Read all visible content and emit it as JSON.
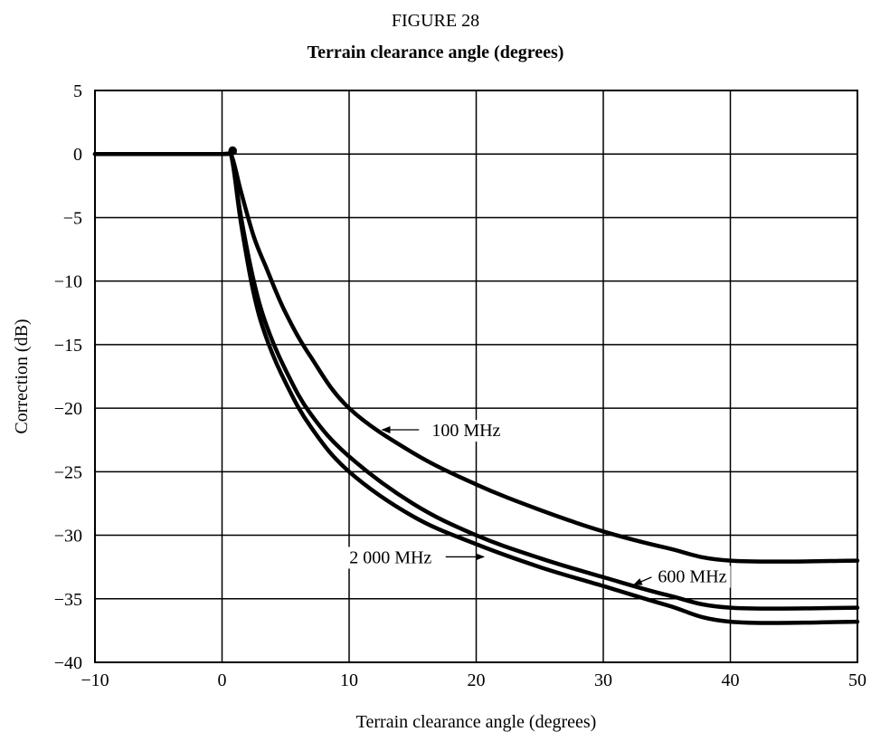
{
  "figure_label": "FIGURE 28",
  "chart_data": {
    "type": "line",
    "title": "Terrain clearance angle (degrees)",
    "xlabel": "Terrain clearance angle (degrees)",
    "ylabel": "Correction (dB)",
    "xlim": [
      -10,
      50
    ],
    "ylim": [
      -40,
      5
    ],
    "xticks": [
      -10,
      0,
      10,
      20,
      30,
      40,
      50
    ],
    "yticks": [
      5,
      0,
      -5,
      -10,
      -15,
      -20,
      -25,
      -30,
      -35,
      -40
    ],
    "xtick_labels": [
      "−10",
      "0",
      "10",
      "20",
      "30",
      "40",
      "50"
    ],
    "ytick_labels": [
      "5",
      "0",
      "−5",
      "−10",
      "−15",
      "−20",
      "−25",
      "−30",
      "−35",
      "−40"
    ],
    "grid": true,
    "series": [
      {
        "name": "100 MHz",
        "x": [
          -10,
          0,
          0.7,
          1.5,
          2.5,
          3.5,
          5,
          7,
          10,
          15,
          20,
          25,
          30,
          35,
          40,
          50
        ],
        "y": [
          0,
          0,
          0,
          -3,
          -6.5,
          -9,
          -12.5,
          -16,
          -20,
          -23.5,
          -26,
          -28,
          -29.7,
          -31,
          -32,
          -32
        ]
      },
      {
        "name": "600 MHz",
        "x": [
          -10,
          0,
          0.7,
          1.5,
          2.5,
          3.5,
          5,
          7,
          10,
          15,
          20,
          25,
          30,
          35,
          40,
          50
        ],
        "y": [
          0,
          0,
          0,
          -5,
          -10,
          -13.5,
          -17,
          -20.5,
          -23.8,
          -27.5,
          -30,
          -31.8,
          -33.3,
          -34.7,
          -35.7,
          -35.7
        ]
      },
      {
        "name": "2 000 MHz",
        "x": [
          -10,
          0,
          0.7,
          1.5,
          2.5,
          3.5,
          5,
          7,
          10,
          15,
          20,
          25,
          30,
          35,
          40,
          50
        ],
        "y": [
          0,
          0,
          0,
          -5.5,
          -11,
          -14.5,
          -18,
          -21.5,
          -25,
          -28.5,
          -30.7,
          -32.5,
          -34,
          -35.5,
          -36.8,
          -36.8
        ]
      }
    ],
    "annotations": [
      {
        "text": "100 MHz",
        "x": 16.5,
        "y": -21.7,
        "arrow_from": [
          15.5,
          -21.7
        ],
        "arrow_to": [
          12.6,
          -21.7
        ],
        "label_anchor": "start"
      },
      {
        "text": "600 MHz",
        "x": 34.3,
        "y": -33.2,
        "arrow_from": [
          33.8,
          -33.3
        ],
        "arrow_to": [
          32.4,
          -33.9
        ],
        "label_anchor": "start"
      },
      {
        "text": "2 000 MHz",
        "x": 16.5,
        "y": -31.7,
        "arrow_from": [
          17.6,
          -31.7
        ],
        "arrow_to": [
          20.6,
          -31.7
        ],
        "label_anchor": "end"
      }
    ]
  }
}
